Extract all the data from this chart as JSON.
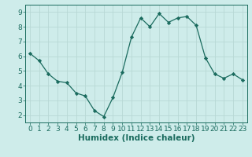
{
  "x": [
    0,
    1,
    2,
    3,
    4,
    5,
    6,
    7,
    8,
    9,
    10,
    11,
    12,
    13,
    14,
    15,
    16,
    17,
    18,
    19,
    20,
    21,
    22,
    23
  ],
  "y": [
    6.2,
    5.7,
    4.8,
    4.3,
    4.2,
    3.5,
    3.3,
    2.3,
    1.9,
    3.2,
    4.9,
    7.3,
    8.6,
    8.0,
    8.9,
    8.3,
    8.6,
    8.7,
    8.1,
    5.9,
    4.8,
    4.5,
    4.8,
    4.4
  ],
  "line_color": "#1a6b5e",
  "marker": "D",
  "marker_size": 2.2,
  "background_color": "#ceecea",
  "grid_color": "#b8d8d5",
  "xlabel": "Humidex (Indice chaleur)",
  "xlabel_fontsize": 7.5,
  "xlabel_fontweight": "bold",
  "ylabel_ticks": [
    2,
    3,
    4,
    5,
    6,
    7,
    8,
    9
  ],
  "xlim": [
    -0.5,
    23.5
  ],
  "ylim": [
    1.5,
    9.5
  ],
  "tick_fontsize": 6.5
}
